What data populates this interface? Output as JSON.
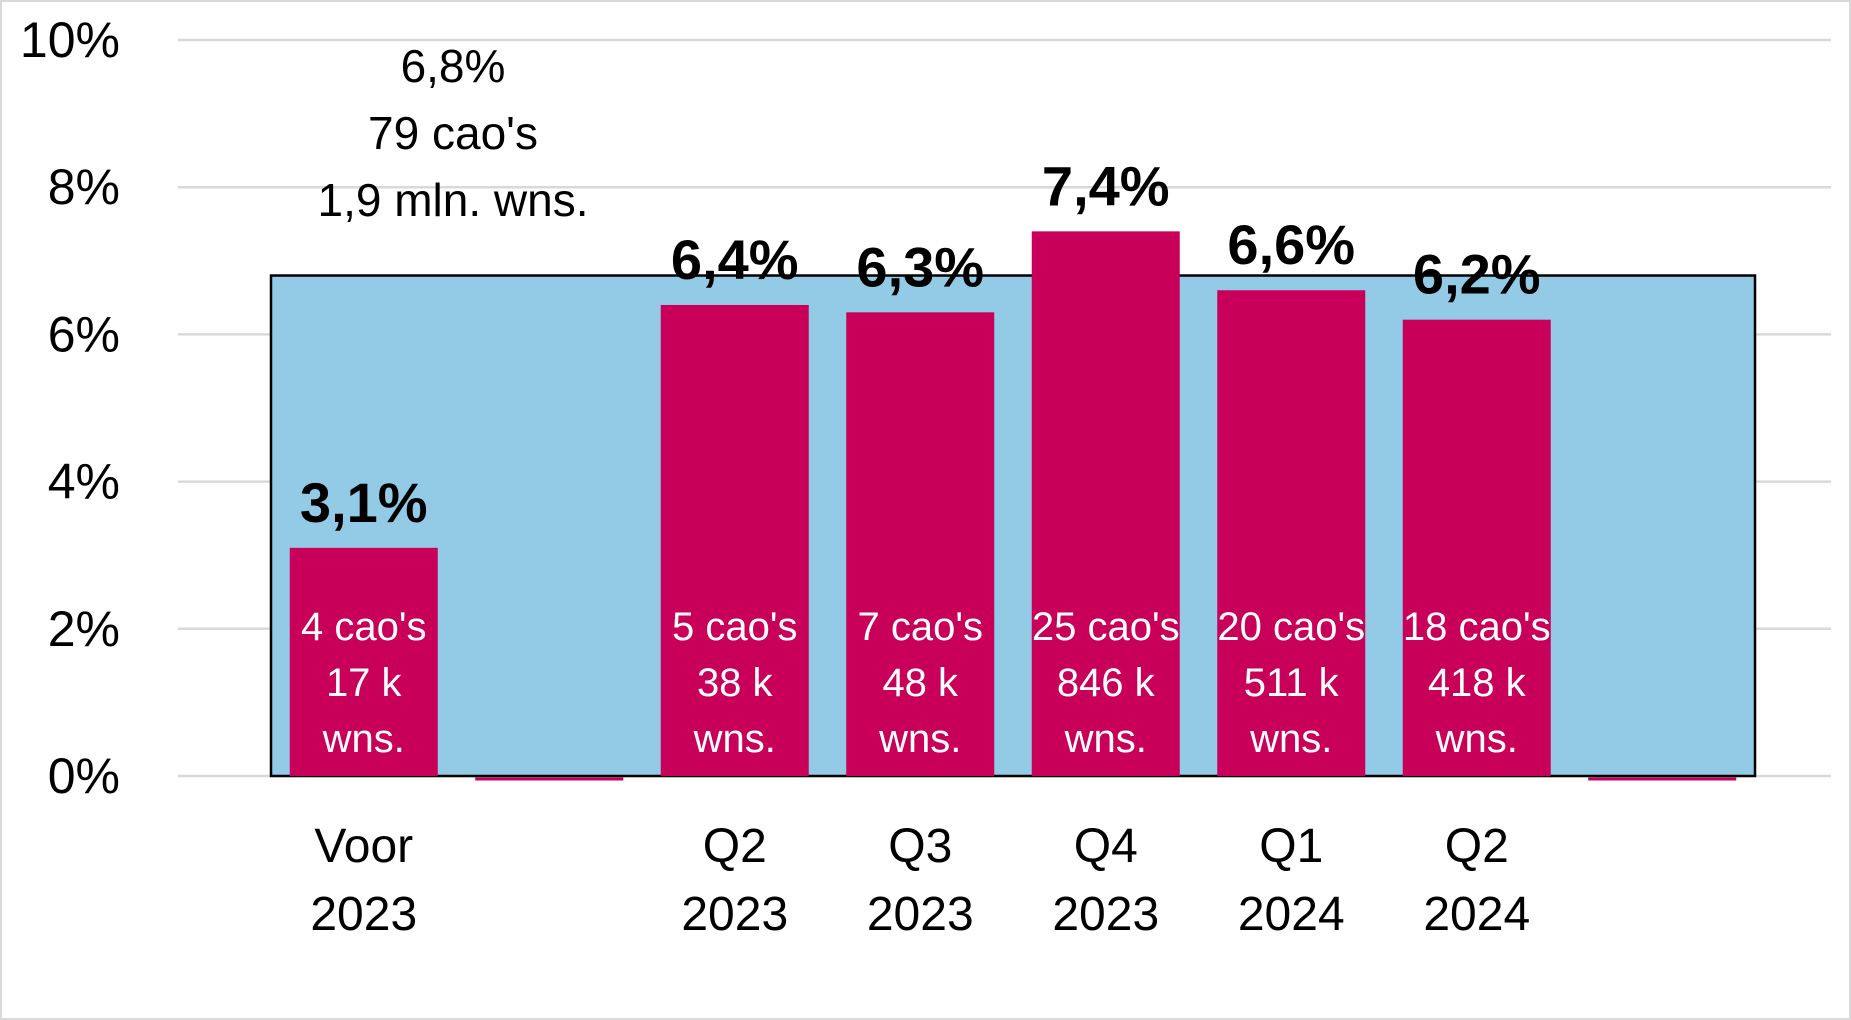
{
  "chart_data": {
    "type": "bar",
    "ylim": [
      0,
      10
    ],
    "y_ticks": [
      "0%",
      "2%",
      "4%",
      "6%",
      "8%",
      "10%"
    ],
    "y_tick_values": [
      0,
      2,
      4,
      6,
      8,
      10
    ],
    "grid": true,
    "slots": 9,
    "categories": [
      {
        "line1": "Voor",
        "line2": "2023"
      },
      {
        "line1": "",
        "line2": ""
      },
      {
        "line1": "Q2",
        "line2": "2023"
      },
      {
        "line1": "Q3",
        "line2": "2023"
      },
      {
        "line1": "Q4",
        "line2": "2023"
      },
      {
        "line1": "Q1",
        "line2": "2024"
      },
      {
        "line1": "Q2",
        "line2": "2024"
      },
      {
        "line1": "",
        "line2": ""
      }
    ],
    "values": [
      3.1,
      0,
      6.4,
      6.3,
      7.4,
      6.6,
      6.2,
      0
    ],
    "value_labels": [
      "3,1%",
      "",
      "6,4%",
      "6,3%",
      "7,4%",
      "6,6%",
      "6,2%",
      ""
    ],
    "inner_labels": [
      [
        "4 cao's",
        "17 k",
        "wns."
      ],
      [],
      [
        "5 cao's",
        "38 k",
        "wns."
      ],
      [
        "7 cao's",
        "48 k",
        "wns."
      ],
      [
        "25 cao's",
        "846 k",
        "wns."
      ],
      [
        "20 cao's",
        "511 k",
        "wns."
      ],
      [
        "18 cao's",
        "418 k",
        "wns."
      ],
      []
    ],
    "total": {
      "value": 6.8,
      "labels": [
        "6,8%",
        "79 cao's",
        "1,9 mln. wns."
      ]
    },
    "colors": {
      "bar": "#c8005a",
      "total_area": "#93cbe7",
      "grid": "#d9d9d9",
      "frame": "#d9d9d9"
    }
  }
}
